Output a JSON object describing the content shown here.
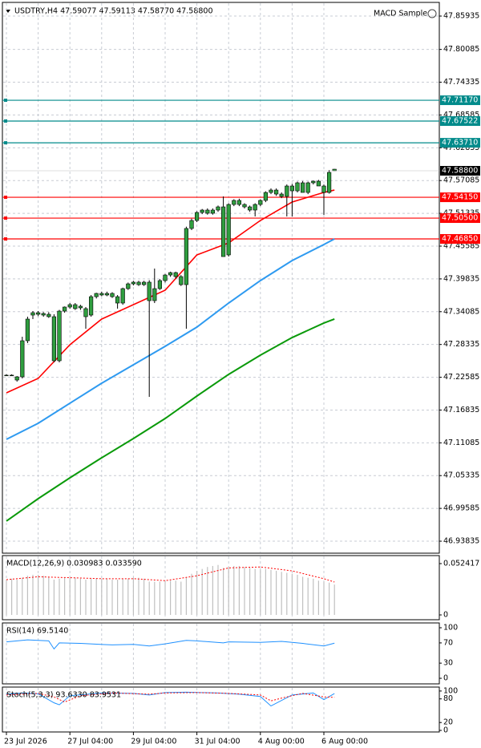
{
  "chart_data": [
    {
      "type": "candlestick",
      "title": "USDTRY,H4  47.59077 47.59113 47.58770 47.58800",
      "indicator_label": "MACD Sample",
      "categories": [
        "23 Jul 2026",
        null,
        null,
        null,
        null,
        null,
        null,
        null,
        null,
        null,
        null,
        null,
        "27 Jul 04:00",
        null,
        null,
        null,
        null,
        null,
        null,
        null,
        null,
        null,
        null,
        null,
        "29 Jul 04:00",
        null,
        null,
        null,
        null,
        null,
        null,
        null,
        null,
        null,
        null,
        null,
        "31 Jul 04:00",
        null,
        null,
        null,
        null,
        null,
        null,
        null,
        null,
        null,
        null,
        null,
        "4 Aug 00:00",
        null,
        null,
        null,
        null,
        null,
        null,
        null,
        null,
        null,
        null,
        null,
        "6 Aug 00:00",
        null,
        null
      ],
      "open": [
        47.2295,
        47.2295,
        47.2266,
        47.2266,
        47.2899,
        47.3349,
        47.3391,
        47.3377,
        47.3363,
        47.3321,
        47.2548,
        47.3419,
        47.349,
        47.3532,
        47.3476,
        47.3462,
        47.3349,
        47.3672,
        47.3729,
        47.3701,
        47.3729,
        47.3672,
        47.356,
        47.3813,
        47.3897,
        47.3926,
        47.3883,
        47.3926,
        47.3602,
        47.3813,
        47.3954,
        47.4052,
        47.4094,
        47.4024,
        47.3883,
        47.4868,
        47.5008,
        47.5149,
        47.5191,
        47.5135,
        47.5191,
        47.5247,
        47.4404,
        47.5289,
        47.536,
        47.5289,
        47.5247,
        47.5191,
        47.5289,
        47.536,
        47.55,
        47.5542,
        47.5472,
        47.543,
        47.5613,
        47.5528,
        47.5669,
        47.55,
        47.5669,
        47.5697,
        47.5613,
        47.55,
        47.59077
      ],
      "high": [
        47.231,
        47.231,
        47.228,
        47.2969,
        47.3321,
        47.342,
        47.342,
        47.34,
        47.34,
        47.3363,
        47.344,
        47.35,
        47.356,
        47.356,
        47.353,
        47.349,
        47.37,
        47.374,
        47.376,
        47.376,
        47.375,
        47.37,
        47.383,
        47.392,
        47.395,
        47.395,
        47.395,
        47.396,
        47.4165,
        47.398,
        47.407,
        47.411,
        47.411,
        47.405,
        47.49,
        47.504,
        47.517,
        47.521,
        47.522,
        47.522,
        47.527,
        47.543,
        47.531,
        47.538,
        47.539,
        47.531,
        47.527,
        47.531,
        47.538,
        47.552,
        47.557,
        47.557,
        47.55,
        47.564,
        47.565,
        47.569,
        47.57,
        47.569,
        47.571,
        47.572,
        47.564,
        47.5894,
        47.59113
      ],
      "low": [
        47.228,
        47.228,
        47.2182,
        47.2238,
        47.2857,
        47.3279,
        47.333,
        47.332,
        47.33,
        47.252,
        47.252,
        47.339,
        47.346,
        47.344,
        47.344,
        47.311,
        47.332,
        47.364,
        47.368,
        47.368,
        47.365,
        47.3462,
        47.353,
        47.379,
        47.387,
        47.386,
        47.386,
        47.1915,
        47.356,
        47.379,
        47.392,
        47.402,
        47.399,
        47.386,
        47.311,
        47.484,
        47.498,
        47.512,
        47.511,
        47.511,
        47.516,
        47.4375,
        47.4375,
        47.526,
        47.526,
        47.522,
        47.516,
        47.5079,
        47.526,
        47.533,
        47.547,
        47.544,
        47.54,
        47.5079,
        47.5079,
        47.55,
        47.55,
        47.547,
        47.564,
        47.5613,
        47.5107,
        47.548,
        47.5877
      ],
      "close": [
        47.2295,
        47.2295,
        47.221,
        47.2899,
        47.3279,
        47.3391,
        47.3363,
        47.3349,
        47.3321,
        47.2548,
        47.3419,
        47.349,
        47.3532,
        47.3462,
        47.3504,
        47.3321,
        47.3672,
        47.3729,
        47.3701,
        47.3729,
        47.3672,
        47.356,
        47.3813,
        47.3897,
        47.3926,
        47.3883,
        47.3926,
        47.3602,
        47.3813,
        47.3954,
        47.4052,
        47.4094,
        47.4024,
        47.3883,
        47.4868,
        47.5008,
        47.5149,
        47.5191,
        47.5135,
        47.5191,
        47.5247,
        47.4375,
        47.5289,
        47.536,
        47.5289,
        47.5247,
        47.5191,
        47.5289,
        47.536,
        47.55,
        47.5542,
        47.5472,
        47.543,
        47.5613,
        47.5528,
        47.5669,
        47.55,
        47.5669,
        47.5697,
        47.5613,
        47.55,
        47.5852,
        47.588
      ],
      "candle_color": "#2f9e3f",
      "series": [
        {
          "color": "#ff0000",
          "x": [
            0,
            6,
            12,
            18,
            24,
            30,
            36,
            42,
            48,
            54,
            60,
            62
          ],
          "values": [
            47.1985,
            47.2238,
            47.2829,
            47.3279,
            47.3532,
            47.3785,
            47.4404,
            47.4615,
            47.5008,
            47.5332,
            47.55,
            47.5542
          ]
        },
        {
          "color": "#2e9af0",
          "x": [
            0,
            6,
            12,
            18,
            24,
            30,
            36,
            42,
            48,
            54,
            60,
            62
          ],
          "values": [
            47.117,
            47.1451,
            47.1803,
            47.2154,
            47.2477,
            47.2801,
            47.3138,
            47.356,
            47.3954,
            47.4305,
            47.4586,
            47.4685
          ]
        },
        {
          "color": "#0a9a0a",
          "x": [
            0,
            6,
            12,
            18,
            24,
            30,
            36,
            42,
            48,
            54,
            60,
            62
          ],
          "values": [
            46.9736,
            47.0129,
            47.0495,
            47.0846,
            47.1184,
            47.1535,
            47.1929,
            47.2309,
            47.2646,
            47.2955,
            47.3209,
            47.3279
          ]
        }
      ],
      "levels": [
        {
          "value": 47.7117,
          "label": "47.71170",
          "color": "#008b8b"
        },
        {
          "value": 47.67522,
          "label": "47.67522",
          "color": "#008b8b"
        },
        {
          "value": 47.6371,
          "label": "47.63710",
          "color": "#008b8b"
        },
        {
          "value": 47.5415,
          "label": "47.54150",
          "color": "#ff0000"
        },
        {
          "value": 47.505,
          "label": "47.50500",
          "color": "#ff0000"
        },
        {
          "value": 47.4685,
          "label": "47.46850",
          "color": "#ff0000"
        }
      ],
      "last_price": {
        "value": 47.588,
        "label": "47.58800"
      },
      "ylim": [
        46.9173,
        47.8833
      ],
      "yticks": [
        47.85935,
        47.80085,
        47.74335,
        47.68585,
        47.62835,
        47.57085,
        47.51335,
        47.45585,
        47.39835,
        47.34085,
        47.28335,
        47.22585,
        47.16835,
        47.11085,
        47.05335,
        46.99585,
        46.93835
      ],
      "grid": true
    },
    {
      "type": "histogram",
      "label": "MACD(12,26,9) 0.030983 0.033590",
      "color": "#c0c0c0",
      "values": [
        0.036,
        0.037,
        0.036,
        0.038,
        0.04,
        0.041,
        0.041,
        0.04,
        0.039,
        0.036,
        0.037,
        0.038,
        0.038,
        0.038,
        0.037,
        0.036,
        0.037,
        0.037,
        0.037,
        0.037,
        0.036,
        0.036,
        0.037,
        0.037,
        0.038,
        0.038,
        0.037,
        0.034,
        0.034,
        0.034,
        0.035,
        0.035,
        0.035,
        0.034,
        0.038,
        0.042,
        0.045,
        0.047,
        0.049,
        0.05,
        0.051,
        0.048,
        0.049,
        0.05,
        0.05,
        0.049,
        0.048,
        0.047,
        0.047,
        0.047,
        0.046,
        0.045,
        0.044,
        0.043,
        0.042,
        0.041,
        0.039,
        0.038,
        0.037,
        0.035,
        0.034,
        0.033,
        0.030983
      ],
      "series": [
        {
          "color": "#ff0000",
          "style": "dotted",
          "x": [
            0,
            6,
            12,
            18,
            24,
            30,
            36,
            42,
            48,
            54,
            60,
            62
          ],
          "values": [
            0.036,
            0.039,
            0.038,
            0.037,
            0.037,
            0.035,
            0.04,
            0.048,
            0.049,
            0.045,
            0.037,
            0.03359
          ]
        }
      ],
      "ylim": [
        -0.0049,
        0.0606
      ],
      "yticks": [
        0.052417,
        0
      ]
    },
    {
      "type": "line",
      "label": "RSI(14) 69.5140",
      "series": [
        {
          "color": "#1e90ff",
          "style": "solid",
          "x": [
            0,
            4,
            8,
            9,
            10,
            14,
            20,
            24,
            27,
            30,
            34,
            36,
            41,
            42,
            48,
            52,
            56,
            60,
            62
          ],
          "values": [
            72,
            76,
            74,
            58,
            70,
            69,
            66,
            67,
            64,
            68,
            75,
            74,
            70,
            72,
            71,
            73,
            69,
            64,
            69.514
          ]
        }
      ],
      "ylim": [
        -11,
        109.5
      ],
      "yticks": [
        100,
        70,
        30,
        0
      ]
    },
    {
      "type": "line",
      "label": "Stoch(5,3,3) 93.6330 83.9531",
      "series": [
        {
          "color": "#1e90ff",
          "style": "solid",
          "x": [
            0,
            3,
            6,
            9,
            10,
            12,
            18,
            24,
            27,
            30,
            34,
            40,
            44,
            48,
            50,
            54,
            58,
            60,
            62
          ],
          "values": [
            92,
            95,
            93,
            70,
            65,
            88,
            95,
            94,
            90,
            96,
            97,
            95,
            92,
            86,
            62,
            90,
            95,
            78,
            93.633
          ]
        },
        {
          "color": "#ff0000",
          "style": "dotted",
          "x": [
            0,
            6,
            9,
            11,
            14,
            20,
            27,
            30,
            36,
            42,
            48,
            50,
            52,
            56,
            60,
            62
          ],
          "values": [
            90,
            94,
            85,
            72,
            88,
            95,
            92,
            95,
            96,
            94,
            90,
            75,
            82,
            94,
            85,
            83.9531
          ]
        }
      ],
      "ylim": [
        -4,
        110
      ],
      "yticks": [
        100,
        80,
        20,
        0
      ]
    }
  ]
}
